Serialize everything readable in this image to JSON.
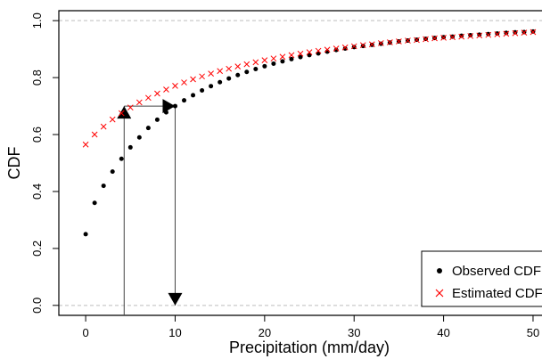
{
  "chart_data": {
    "type": "scatter",
    "xlabel": "Precipitation (mm/day)",
    "ylabel": "CDF",
    "xlim": [
      -3,
      51
    ],
    "ylim": [
      -0.035,
      1.035
    ],
    "x_ticks": [
      0,
      10,
      20,
      30,
      40,
      50
    ],
    "y_ticks": [
      0.0,
      0.2,
      0.4,
      0.6,
      0.8,
      1.0
    ],
    "x_tick_labels": [
      "0",
      "10",
      "20",
      "30",
      "40",
      "50"
    ],
    "y_tick_labels": [
      "0.0",
      "0.2",
      "0.4",
      "0.6",
      "0.8",
      "1.0"
    ],
    "reference_lines": [
      0,
      1
    ],
    "legend_position": "bottom-right",
    "series": [
      {
        "name": "Observed CDF",
        "marker": "dot",
        "color": "#000000",
        "x": [
          0,
          1,
          2,
          3,
          4,
          5,
          6,
          7,
          8,
          9,
          10,
          11,
          12,
          13,
          14,
          15,
          16,
          17,
          18,
          19,
          20,
          21,
          22,
          23,
          24,
          25,
          26,
          27,
          28,
          29,
          30,
          31,
          32,
          33,
          34,
          35,
          36,
          37,
          38,
          39,
          40,
          41,
          42,
          43,
          44,
          45,
          46,
          47,
          48,
          49,
          50
        ],
        "values": [
          0.25,
          0.36,
          0.42,
          0.47,
          0.515,
          0.555,
          0.59,
          0.623,
          0.652,
          0.678,
          0.7,
          0.72,
          0.738,
          0.755,
          0.77,
          0.784,
          0.797,
          0.809,
          0.82,
          0.83,
          0.84,
          0.849,
          0.857,
          0.865,
          0.872,
          0.879,
          0.885,
          0.891,
          0.897,
          0.902,
          0.907,
          0.911,
          0.915,
          0.919,
          0.923,
          0.927,
          0.93,
          0.933,
          0.936,
          0.939,
          0.942,
          0.944,
          0.947,
          0.949,
          0.951,
          0.953,
          0.955,
          0.957,
          0.959,
          0.96,
          0.962
        ]
      },
      {
        "name": "Estimated CDF",
        "marker": "x",
        "color": "#ff0000",
        "x": [
          0,
          1,
          2,
          3,
          4,
          5,
          6,
          7,
          8,
          9,
          10,
          11,
          12,
          13,
          14,
          15,
          16,
          17,
          18,
          19,
          20,
          21,
          22,
          23,
          24,
          25,
          26,
          27,
          28,
          29,
          30,
          31,
          32,
          33,
          34,
          35,
          36,
          37,
          38,
          39,
          40,
          41,
          42,
          43,
          44,
          45,
          46,
          47,
          48,
          49,
          50
        ],
        "values": [
          0.565,
          0.6,
          0.628,
          0.653,
          0.675,
          0.695,
          0.713,
          0.729,
          0.744,
          0.758,
          0.771,
          0.783,
          0.794,
          0.804,
          0.814,
          0.823,
          0.831,
          0.839,
          0.847,
          0.854,
          0.861,
          0.867,
          0.873,
          0.879,
          0.884,
          0.889,
          0.894,
          0.898,
          0.902,
          0.906,
          0.91,
          0.914,
          0.917,
          0.921,
          0.924,
          0.927,
          0.93,
          0.932,
          0.935,
          0.938,
          0.94,
          0.942,
          0.944,
          0.946,
          0.948,
          0.95,
          0.952,
          0.954,
          0.956,
          0.958,
          0.96
        ]
      }
    ],
    "annotations": [
      {
        "type": "line",
        "from": [
          4.3,
          -0.035
        ],
        "to": [
          4.3,
          0.7
        ]
      },
      {
        "type": "arrow",
        "from": [
          4.3,
          0.7
        ],
        "to": [
          10,
          0.7
        ]
      },
      {
        "type": "arrow",
        "from": [
          10,
          0.7
        ],
        "to": [
          10,
          0.0
        ]
      }
    ]
  }
}
